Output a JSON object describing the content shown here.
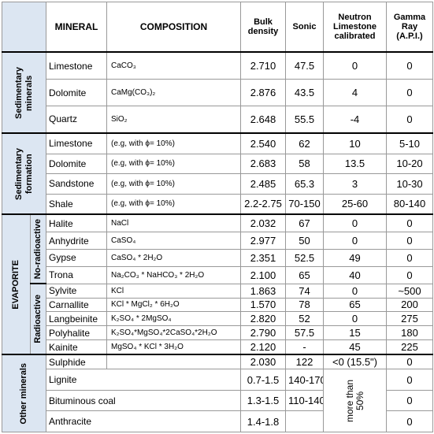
{
  "header": [
    "MINERAL",
    "COMPOSITION",
    "Bulk density",
    "Sonic",
    "Neutron Limestone calibrated",
    "Gamma Ray (A.P.I.)"
  ],
  "groups": [
    {
      "label": "Sedimentary minerals",
      "rows": [
        {
          "mineral": "Limestone",
          "composition": "CaCO₃",
          "density": "2.710",
          "sonic": "47.5",
          "neutron": "0",
          "gamma": "0"
        },
        {
          "mineral": "Dolomite",
          "composition": "CaMg(CO₃)₂",
          "density": "2.876",
          "sonic": "43.5",
          "neutron": "4",
          "gamma": "0"
        },
        {
          "mineral": "Quartz",
          "composition": "SiO₂",
          "density": "2.648",
          "sonic": "55.5",
          "neutron": "-4",
          "gamma": "0"
        }
      ]
    },
    {
      "label": "Sedimentary formation",
      "rows": [
        {
          "mineral": "Limestone",
          "composition": "(e.g, with ϕ= 10%)",
          "density": "2.540",
          "sonic": "62",
          "neutron": "10",
          "gamma": "5-10"
        },
        {
          "mineral": "Dolomite",
          "composition": "(e.g, with ϕ= 10%)",
          "density": "2.683",
          "sonic": "58",
          "neutron": "13.5",
          "gamma": "10-20"
        },
        {
          "mineral": "Sandstone",
          "composition": "(e.g, with ϕ= 10%)",
          "density": "2.485",
          "sonic": "65.3",
          "neutron": "3",
          "gamma": "10-30"
        },
        {
          "mineral": "Shale",
          "composition": "(e.g, with ϕ= 10%)",
          "density": "2.2-2.75",
          "sonic": "70-150",
          "neutron": "25-60",
          "gamma": "80-140"
        }
      ]
    },
    {
      "label": "EVAPORITE",
      "subgroups": [
        {
          "label": "No-radioactive",
          "rows": [
            {
              "mineral": "Halite",
              "composition": "NaCl",
              "density": "2.032",
              "sonic": "67",
              "neutron": "0",
              "gamma": "0"
            },
            {
              "mineral": "Anhydrite",
              "composition": "CaSO₄",
              "density": "2.977",
              "sonic": "50",
              "neutron": "0",
              "gamma": "0"
            },
            {
              "mineral": "Gypse",
              "composition": "CaSO₄ * 2H₂O",
              "density": "2.351",
              "sonic": "52.5",
              "neutron": "49",
              "gamma": "0"
            },
            {
              "mineral": "Trona",
              "composition": "Na₂CO₃ * NaHCO₃ * 2H₂O",
              "density": "2.100",
              "sonic": "65",
              "neutron": "40",
              "gamma": "0"
            }
          ]
        },
        {
          "label": "Radioactive",
          "rows": [
            {
              "mineral": "Sylvite",
              "composition": "KCl",
              "density": "1.863",
              "sonic": "74",
              "neutron": "0",
              "gamma": "~500"
            },
            {
              "mineral": "Carnallite",
              "composition": "KCl * MgCl₂ * 6H₂O",
              "density": "1.570",
              "sonic": "78",
              "neutron": "65",
              "gamma": "200"
            },
            {
              "mineral": "Langbeinite",
              "composition": "K₂SO₄ * 2MgSO₄",
              "density": "2.820",
              "sonic": "52",
              "neutron": "0",
              "gamma": "275"
            },
            {
              "mineral": "Polyhalite",
              "composition": "K₂SO₄*MgSO₄*2CaSO₄*2H₂O",
              "density": "2.790",
              "sonic": "57.5",
              "neutron": "15",
              "gamma": "180"
            },
            {
              "mineral": "Kainite",
              "composition": "MgSO₄ * KCl * 3H₂O",
              "density": "2.120",
              "sonic": "-",
              "neutron": "45",
              "gamma": "225"
            }
          ]
        }
      ]
    },
    {
      "label": "Other minerals",
      "merged_neutron": "more than 50%",
      "rows": [
        {
          "mineral": "Sulphide",
          "density": "2.030",
          "sonic": "122",
          "neutron": "<0 (15.5\")",
          "gamma": "0"
        },
        {
          "mineral": "Lignite",
          "density": "0.7-1.5",
          "sonic": "140-170",
          "gamma": "0"
        },
        {
          "mineral": "Bituminous coal",
          "density": "1.3-1.5",
          "sonic": "110-140",
          "gamma": "0"
        },
        {
          "mineral": "Anthracite",
          "density": "1.4-1.8",
          "gamma": "0"
        }
      ]
    }
  ]
}
